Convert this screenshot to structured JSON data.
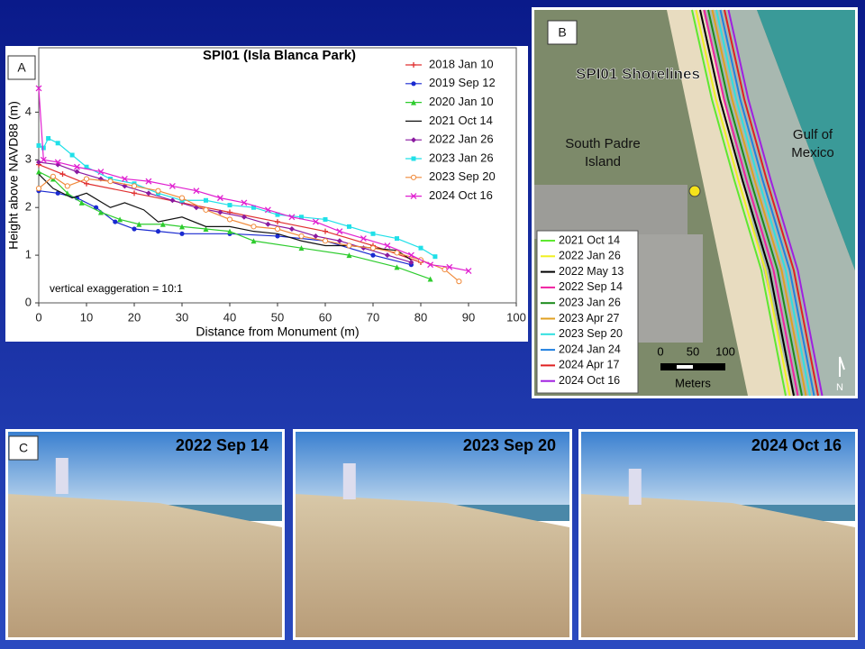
{
  "chart_data": {
    "type": "line",
    "panel_label": "A",
    "title": "SPI01 (Isla Blanca Park)",
    "x_label": "Distance from Monument (m)",
    "y_label": "Height above NAVD88 (m)",
    "annotation": "vertical exaggeration = 10:1",
    "xlim": [
      0,
      100
    ],
    "ylim": [
      0,
      5.35
    ],
    "xticks": [
      0,
      10,
      20,
      30,
      40,
      50,
      60,
      70,
      80,
      90,
      100
    ],
    "yticks": [
      0,
      1,
      2,
      3,
      4
    ],
    "legend": "upper right",
    "series": [
      {
        "name": "2018 Jan 10",
        "color": "#e03030",
        "marker": "plus",
        "x": [
          0,
          5,
          10,
          20,
          30,
          40,
          50,
          60,
          70,
          80
        ],
        "values": [
          2.9,
          2.7,
          2.5,
          2.3,
          2.1,
          1.9,
          1.7,
          1.5,
          1.2,
          0.85
        ]
      },
      {
        "name": "2019 Sep 12",
        "color": "#1a2ad0",
        "marker": "circle",
        "x": [
          0,
          4,
          8,
          12,
          16,
          20,
          25,
          30,
          40,
          50,
          60,
          70,
          78
        ],
        "values": [
          2.35,
          2.3,
          2.2,
          2.0,
          1.7,
          1.55,
          1.5,
          1.45,
          1.45,
          1.4,
          1.3,
          1.0,
          0.8
        ]
      },
      {
        "name": "2020 Jan 10",
        "color": "#2ecc2e",
        "marker": "triangle",
        "x": [
          0,
          3,
          6,
          9,
          13,
          17,
          21,
          26,
          30,
          35,
          40,
          45,
          55,
          65,
          75,
          82
        ],
        "values": [
          2.75,
          2.6,
          2.3,
          2.1,
          1.9,
          1.75,
          1.65,
          1.65,
          1.6,
          1.55,
          1.5,
          1.3,
          1.15,
          1.0,
          0.75,
          0.5
        ]
      },
      {
        "name": "2021 Oct 14",
        "color": "#111111",
        "marker": "none",
        "x": [
          0,
          3,
          7,
          10,
          15,
          18,
          22,
          25,
          30,
          35,
          40,
          45,
          50,
          55,
          60,
          65,
          70,
          75,
          78
        ],
        "values": [
          2.7,
          2.4,
          2.2,
          2.3,
          2.0,
          2.1,
          1.95,
          1.7,
          1.8,
          1.6,
          1.6,
          1.5,
          1.45,
          1.3,
          1.2,
          1.2,
          1.15,
          1.1,
          0.9
        ]
      },
      {
        "name": "2022 Jan 26",
        "color": "#8a1aa0",
        "marker": "diamond",
        "x": [
          0,
          4,
          8,
          13,
          18,
          23,
          28,
          33,
          38,
          43,
          48,
          53,
          58,
          63,
          68,
          73,
          78
        ],
        "values": [
          2.95,
          2.9,
          2.75,
          2.6,
          2.45,
          2.3,
          2.15,
          2.0,
          1.9,
          1.8,
          1.65,
          1.55,
          1.4,
          1.3,
          1.15,
          1.0,
          0.85
        ]
      },
      {
        "name": "2023 Jan 26",
        "color": "#20e0e8",
        "marker": "square",
        "x": [
          0,
          1,
          2,
          4,
          7,
          10,
          15,
          20,
          25,
          30,
          35,
          40,
          45,
          50,
          55,
          60,
          65,
          70,
          75,
          80,
          83
        ],
        "values": [
          3.3,
          3.25,
          3.45,
          3.35,
          3.1,
          2.85,
          2.6,
          2.5,
          2.3,
          2.15,
          2.15,
          2.05,
          2.0,
          1.85,
          1.8,
          1.75,
          1.6,
          1.45,
          1.35,
          1.15,
          0.97
        ]
      },
      {
        "name": "2023 Sep 20",
        "color": "#f08a3a",
        "marker": "circle-open",
        "x": [
          0,
          3,
          6,
          10,
          15,
          20,
          25,
          30,
          35,
          40,
          45,
          50,
          55,
          60,
          65,
          70,
          75,
          80,
          85,
          88
        ],
        "values": [
          2.4,
          2.65,
          2.45,
          2.6,
          2.55,
          2.45,
          2.35,
          2.2,
          1.95,
          1.75,
          1.6,
          1.55,
          1.4,
          1.3,
          1.2,
          1.15,
          1.05,
          0.9,
          0.7,
          0.45
        ]
      },
      {
        "name": "2024 Oct 16",
        "color": "#e020d0",
        "marker": "x",
        "x": [
          0,
          1,
          4,
          8,
          13,
          18,
          23,
          28,
          33,
          38,
          43,
          48,
          53,
          58,
          63,
          68,
          73,
          78,
          82,
          86,
          90
        ],
        "values": [
          4.5,
          3.0,
          2.95,
          2.85,
          2.75,
          2.6,
          2.55,
          2.45,
          2.35,
          2.2,
          2.1,
          1.95,
          1.8,
          1.7,
          1.5,
          1.35,
          1.2,
          1.0,
          0.8,
          0.75,
          0.67
        ]
      }
    ]
  },
  "map": {
    "panel_label": "B",
    "title": "SPI01 Shorelines",
    "place_1": "South Padre Island",
    "place_2": "Gulf of Mexico",
    "scale": [
      "0",
      "50",
      "100"
    ],
    "scale_unit": "Meters",
    "north": "N",
    "legend": [
      {
        "name": "2021 Oct 14",
        "color": "#5ee830"
      },
      {
        "name": "2022 Jan 26",
        "color": "#f0f020"
      },
      {
        "name": "2022 May 13",
        "color": "#000000"
      },
      {
        "name": "2022 Sep 14",
        "color": "#f020a0"
      },
      {
        "name": "2023 Jan 26",
        "color": "#1a8a1a"
      },
      {
        "name": "2023 Apr 27",
        "color": "#e0a020"
      },
      {
        "name": "2023 Sep 20",
        "color": "#30e0e0"
      },
      {
        "name": "2024 Jan 24",
        "color": "#2080e0"
      },
      {
        "name": "2024 Apr 17",
        "color": "#e02020"
      },
      {
        "name": "2024 Oct 16",
        "color": "#a020e0"
      }
    ]
  },
  "photos": {
    "panel_label": "C",
    "items": [
      "2022 Sep 14",
      "2023 Sep 20",
      "2024 Oct 16"
    ]
  }
}
